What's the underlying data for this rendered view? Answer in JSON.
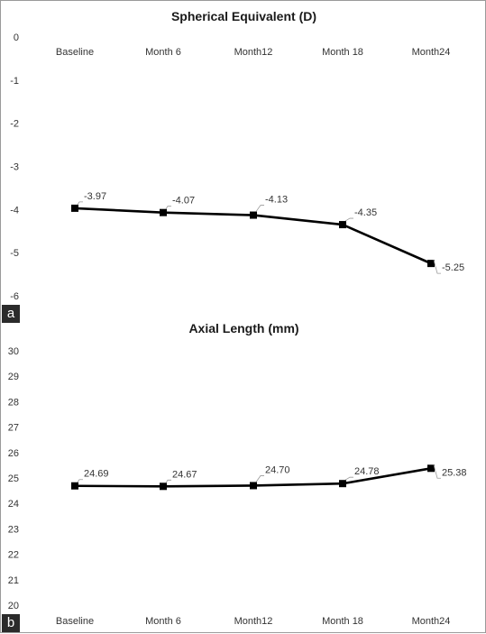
{
  "panels": [
    {
      "tag": "a"
    },
    {
      "tag": "b"
    }
  ],
  "chart_data": [
    {
      "type": "line",
      "title": "Spherical Equivalent (D)",
      "xlabel": "",
      "ylabel": "",
      "categories": [
        "Baseline",
        "Month 6",
        "Month12",
        "Month 18",
        "Month24"
      ],
      "values": [
        -3.97,
        -4.07,
        -4.13,
        -4.35,
        -5.25
      ],
      "data_labels": [
        "-3.97",
        "-4.07",
        "-4.13",
        "-4.35",
        "-5.25"
      ],
      "yticks": [
        "0",
        "-1",
        "-2",
        "-3",
        "-4",
        "-5",
        "-6"
      ],
      "ylim": [
        -6,
        0
      ],
      "x_axis_position": "top",
      "grid": false,
      "legend": "none",
      "line_color": "#000000"
    },
    {
      "type": "line",
      "title": "Axial Length (mm)",
      "xlabel": "",
      "ylabel": "",
      "categories": [
        "Baseline",
        "Month 6",
        "Month12",
        "Month 18",
        "Month24"
      ],
      "values": [
        24.69,
        24.67,
        24.7,
        24.78,
        25.38
      ],
      "data_labels": [
        "24.69",
        "24.67",
        "24.70",
        "24.78",
        "25.38"
      ],
      "yticks": [
        "30",
        "29",
        "28",
        "27",
        "26",
        "25",
        "24",
        "23",
        "22",
        "21",
        "20"
      ],
      "ylim": [
        20,
        30
      ],
      "x_axis_position": "bottom",
      "grid": false,
      "legend": "none",
      "line_color": "#000000"
    }
  ]
}
